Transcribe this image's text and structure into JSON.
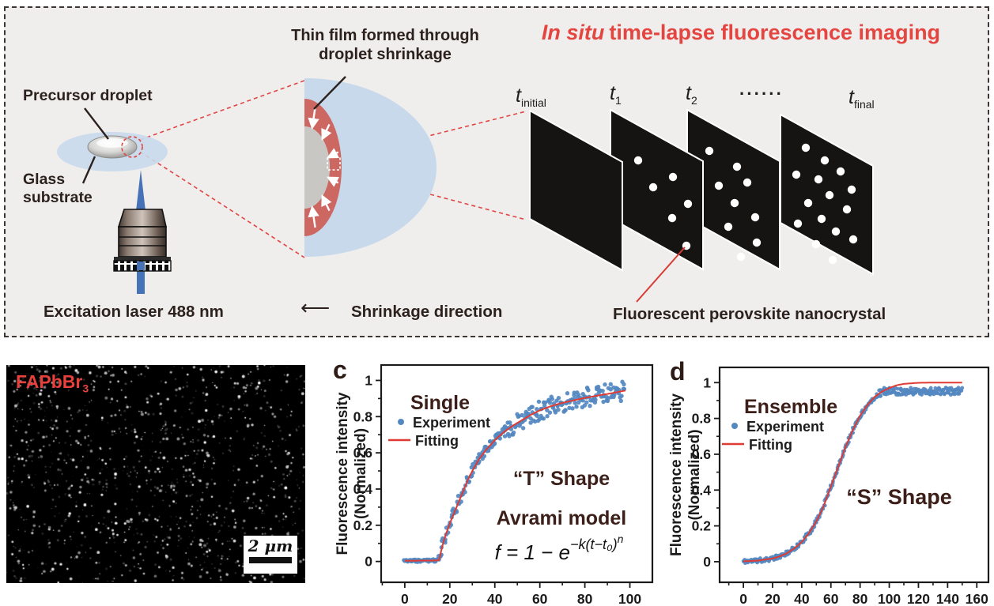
{
  "panel": {
    "title": {
      "italic": "In situ",
      "rest": "time-lapse fluorescence imaging"
    },
    "labels": {
      "precursor": "Precursor droplet",
      "glass_line1": "Glass",
      "glass_line2": "substrate",
      "thinfilm_line1": "Thin film formed through",
      "thinfilm_line2": "droplet shrinkage",
      "excitation": "Excitation laser 488 nm",
      "shrink_arrow": "⟵",
      "shrink": "Shrinkage direction",
      "nanocrystal": "Fluorescent perovskite nanocrystal",
      "ellipsis": "······"
    },
    "times": [
      {
        "base": "t",
        "sub": "initial"
      },
      {
        "base": "t",
        "sub": "1"
      },
      {
        "base": "t",
        "sub": "2"
      },
      {
        "base": "t",
        "sub": "final"
      }
    ],
    "frames": [
      {
        "name": "t_initial",
        "dots": []
      },
      {
        "name": "t_1",
        "dots": [
          [
            35,
            64
          ],
          [
            79,
            85
          ],
          [
            54,
            98
          ],
          [
            98,
            119
          ],
          [
            78,
            137
          ],
          [
            96,
            172
          ]
        ]
      },
      {
        "name": "t_2",
        "dots": [
          [
            28,
            52
          ],
          [
            63,
            72
          ],
          [
            40,
            96
          ],
          [
            76,
            92
          ],
          [
            60,
            118
          ],
          [
            86,
            136
          ],
          [
            52,
            148
          ],
          [
            88,
            168
          ],
          [
            68,
            186
          ]
        ]
      },
      {
        "name": "t_final",
        "dots": [
          [
            32,
            42
          ],
          [
            56,
            58
          ],
          [
            20,
            76
          ],
          [
            48,
            82
          ],
          [
            76,
            72
          ],
          [
            90,
            95
          ],
          [
            62,
            102
          ],
          [
            35,
            112
          ],
          [
            84,
            120
          ],
          [
            52,
            132
          ],
          [
            22,
            138
          ],
          [
            70,
            148
          ],
          [
            92,
            158
          ],
          [
            45,
            164
          ],
          [
            66,
            184
          ]
        ]
      }
    ]
  },
  "micrograph": {
    "label": "FAPbBr",
    "label_sub": "3",
    "scalebar": "2 μm",
    "bright_dots": 680,
    "dim_dots": 500,
    "seed": 7
  },
  "colors": {
    "accent_red": "#e54540",
    "experiment_blue": "#5488c1",
    "fit_red": "#e03b33",
    "maroon": "#3b1f18",
    "axis": "#1b1b1b",
    "film_red": "#cd6762",
    "droplet_blue": "#c8d9ec",
    "laser_blue": "#4673b8"
  },
  "chart_data": [
    {
      "id": "c",
      "type": "scatter",
      "panel_label": "c",
      "title": "Single",
      "ylabel_line1": "Fluorescence intensity",
      "ylabel_line2": "(Normalized)",
      "legend": [
        "Experiment",
        "Fitting"
      ],
      "shape_label": "“T” Shape",
      "model_label": "Avrami model",
      "equation": {
        "base": "f = 1 − e",
        "exp": "−k(t−t₀)",
        "pow": "n"
      },
      "xticks": [
        0,
        20,
        40,
        60,
        80,
        100
      ],
      "yticks": [
        0,
        0.2,
        0.4,
        0.6,
        0.8,
        1
      ],
      "xlim": [
        -10.5,
        110
      ],
      "ylim": [
        -0.115,
        1.085
      ],
      "fit": {
        "t": [
          0,
          4,
          8,
          12,
          15,
          15.5,
          16,
          17,
          18,
          20,
          22,
          24,
          26,
          28,
          30,
          33,
          36,
          40,
          44,
          48,
          52,
          56,
          60,
          65,
          70,
          75,
          80,
          85,
          90,
          95,
          98
        ],
        "f": [
          0.004,
          0.004,
          0.005,
          0.005,
          0.006,
          0.02,
          0.05,
          0.1,
          0.14,
          0.21,
          0.27,
          0.33,
          0.39,
          0.45,
          0.5,
          0.565,
          0.615,
          0.67,
          0.715,
          0.75,
          0.78,
          0.81,
          0.835,
          0.858,
          0.876,
          0.89,
          0.903,
          0.915,
          0.925,
          0.937,
          0.944
        ]
      },
      "experiment": {
        "t_step": 0.33,
        "t_max": 98,
        "seed": 3,
        "noise": [
          {
            "until": 15,
            "amp": 0.007
          },
          {
            "until": 45,
            "amp": 0.03
          },
          {
            "until": 999,
            "amp": 0.055
          }
        ],
        "cap": 1.03
      }
    },
    {
      "id": "d",
      "type": "scatter",
      "panel_label": "d",
      "title": "Ensemble",
      "ylabel_line1": "Fluorescence intensity",
      "ylabel_line2": "(Normalized)",
      "legend": [
        "Experiment",
        "Fitting"
      ],
      "shape_label": "“S” Shape",
      "model_label": "",
      "equation": null,
      "xticks": [
        0,
        20,
        40,
        60,
        80,
        100,
        120,
        140,
        160
      ],
      "yticks": [
        0,
        0.2,
        0.4,
        0.6,
        0.8,
        1
      ],
      "xlim": [
        -16.3,
        168
      ],
      "ylim": [
        -0.115,
        1.085
      ],
      "fit": {
        "t": [
          0,
          10,
          20,
          25,
          30,
          35,
          40,
          45,
          50,
          55,
          60,
          65,
          70,
          75,
          80,
          85,
          90,
          95,
          100,
          105,
          110,
          120,
          130,
          140,
          150
        ],
        "f": [
          0.002,
          0.006,
          0.018,
          0.03,
          0.048,
          0.075,
          0.11,
          0.16,
          0.225,
          0.31,
          0.42,
          0.53,
          0.64,
          0.735,
          0.815,
          0.875,
          0.92,
          0.95,
          0.97,
          0.985,
          0.993,
          0.999,
          1.0,
          1.0,
          1.0
        ]
      },
      "experiment": {
        "t_step": 0.4,
        "t_max": 150,
        "seed": 11,
        "noise": [
          {
            "until": 90,
            "amp": 0.012
          },
          {
            "until": 999,
            "amp": 0.02
          }
        ],
        "cap": 0.952
      }
    }
  ]
}
